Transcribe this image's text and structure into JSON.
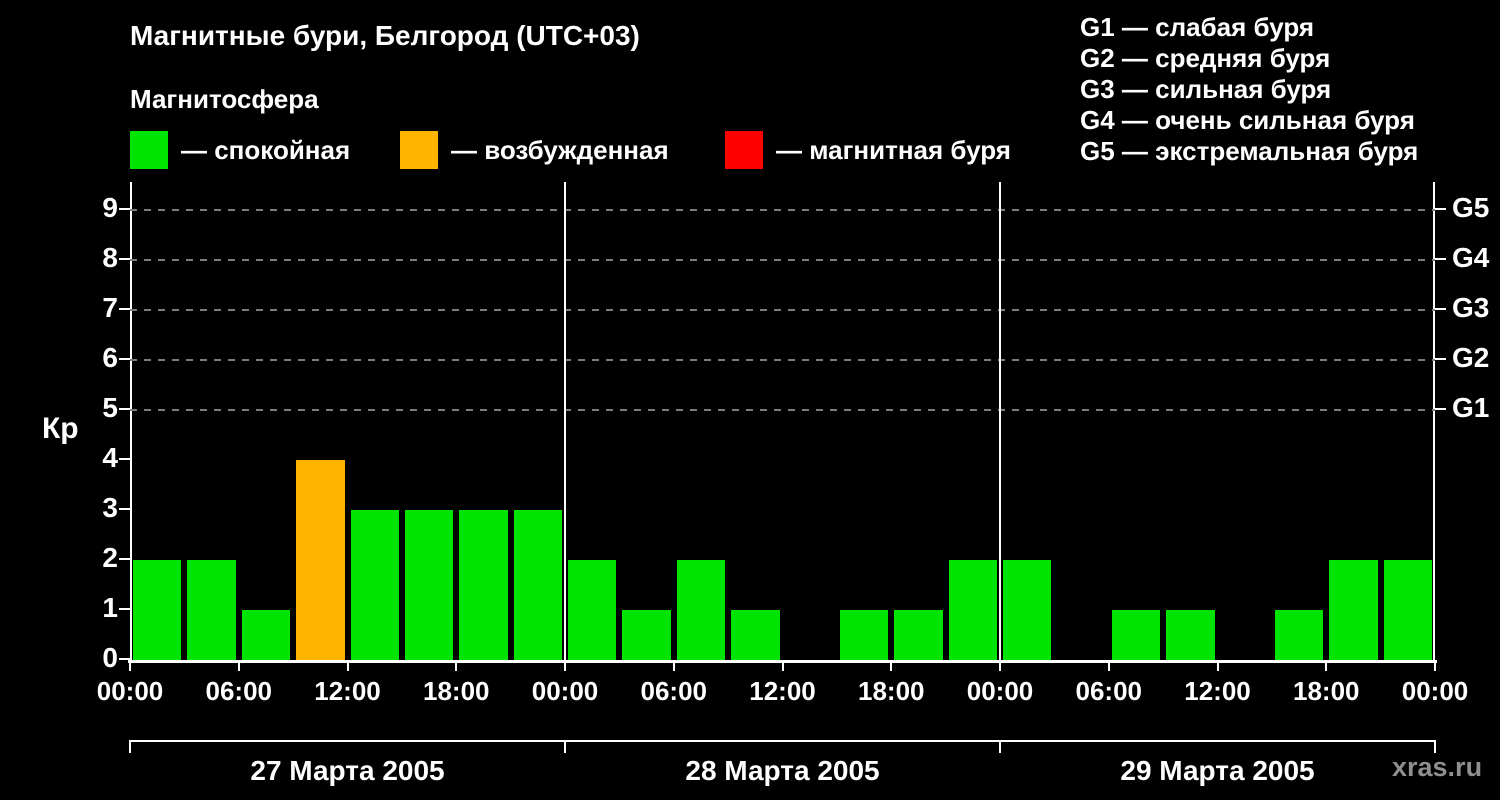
{
  "header": {
    "title": "Магнитные бури, Белгород (UTC+03)",
    "subtitle": "Магнитосфера"
  },
  "legend": {
    "items": [
      {
        "key": "quiet",
        "label": "— спокойная",
        "color": "#00e400"
      },
      {
        "key": "excited",
        "label": "— возбужденная",
        "color": "#ffb400"
      },
      {
        "key": "storm",
        "label": "— магнитная буря",
        "color": "#ff0000"
      }
    ]
  },
  "g_legend": {
    "items": [
      "G1 — слабая буря",
      "G2 — средняя буря",
      "G3 — сильная буря",
      "G4 — очень сильная буря",
      "G5 — экстремальная буря"
    ]
  },
  "watermark": "xras.ru",
  "chart_data": {
    "type": "bar",
    "title": "Магнитные бури, Белгород (UTC+03)",
    "ylabel": "Кр",
    "xlabel": "",
    "ylim": [
      0,
      9.56
    ],
    "yticks": [
      0,
      1,
      2,
      3,
      4,
      5,
      6,
      7,
      8,
      9
    ],
    "gridlines_at": [
      5,
      6,
      7,
      8,
      9
    ],
    "grid": "dashed horizontal at G levels",
    "right_axis_labels": [
      {
        "kp": 5,
        "label": "G1"
      },
      {
        "kp": 6,
        "label": "G2"
      },
      {
        "kp": 7,
        "label": "G3"
      },
      {
        "kp": 8,
        "label": "G4"
      },
      {
        "kp": 9,
        "label": "G5"
      }
    ],
    "x_tick_labels": [
      "00:00",
      "06:00",
      "12:00",
      "18:00",
      "00:00",
      "06:00",
      "12:00",
      "18:00",
      "00:00",
      "06:00",
      "12:00",
      "18:00",
      "00:00"
    ],
    "bar_interval_hours": 3,
    "days": [
      {
        "date": "27 Марта 2005",
        "kp_values": [
          2,
          2,
          1,
          4,
          3,
          3,
          3,
          3
        ]
      },
      {
        "date": "28 Марта 2005",
        "kp_values": [
          2,
          1,
          2,
          1,
          0,
          1,
          1,
          2
        ]
      },
      {
        "date": "29 Марта 2005",
        "kp_values": [
          2,
          0,
          1,
          1,
          0,
          1,
          2,
          2
        ]
      }
    ],
    "colors": {
      "quiet": "#00e400",
      "excited": "#ffb400",
      "storm": "#ff0000"
    },
    "color_rule": {
      "quiet_max_kp": 3,
      "excited_kp": 4,
      "storm_min_kp": 5
    }
  }
}
